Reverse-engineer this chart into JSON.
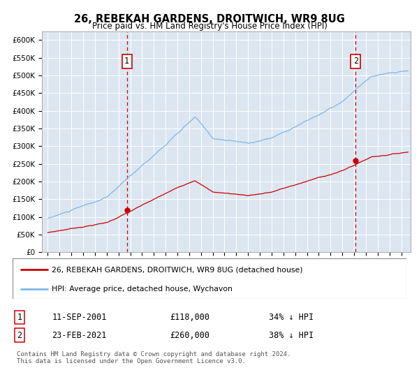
{
  "title": "26, REBEKAH GARDENS, DROITWICH, WR9 8UG",
  "subtitle": "Price paid vs. HM Land Registry's House Price Index (HPI)",
  "background_color": "#dce6f1",
  "plot_bg_color": "#dce6f1",
  "hpi_color": "#7eb6e8",
  "price_color": "#cc0000",
  "ylim": [
    0,
    625000
  ],
  "yticks": [
    0,
    50000,
    100000,
    150000,
    200000,
    250000,
    300000,
    350000,
    400000,
    450000,
    500000,
    550000,
    600000
  ],
  "ytick_labels": [
    "£0",
    "£50K",
    "£100K",
    "£150K",
    "£200K",
    "£250K",
    "£300K",
    "£350K",
    "£400K",
    "£450K",
    "£500K",
    "£550K",
    "£600K"
  ],
  "sale1_date_num": 2001.71,
  "sale1_price": 118000,
  "sale1_label": "1",
  "sale1_date_str": "11-SEP-2001",
  "sale1_hpi_val": "£118,000",
  "sale1_hpi_pct": "34% ↓ HPI",
  "sale2_date_num": 2021.13,
  "sale2_price": 260000,
  "sale2_label": "2",
  "sale2_date_str": "23-FEB-2021",
  "sale2_hpi_val": "£260,000",
  "sale2_hpi_pct": "38% ↓ HPI",
  "legend_line1": "26, REBEKAH GARDENS, DROITWICH, WR9 8UG (detached house)",
  "legend_line2": "HPI: Average price, detached house, Wychavon",
  "footnote": "Contains HM Land Registry data © Crown copyright and database right 2024.\nThis data is licensed under the Open Government Licence v3.0.",
  "xlim_start": 1994.5,
  "xlim_end": 2025.8
}
